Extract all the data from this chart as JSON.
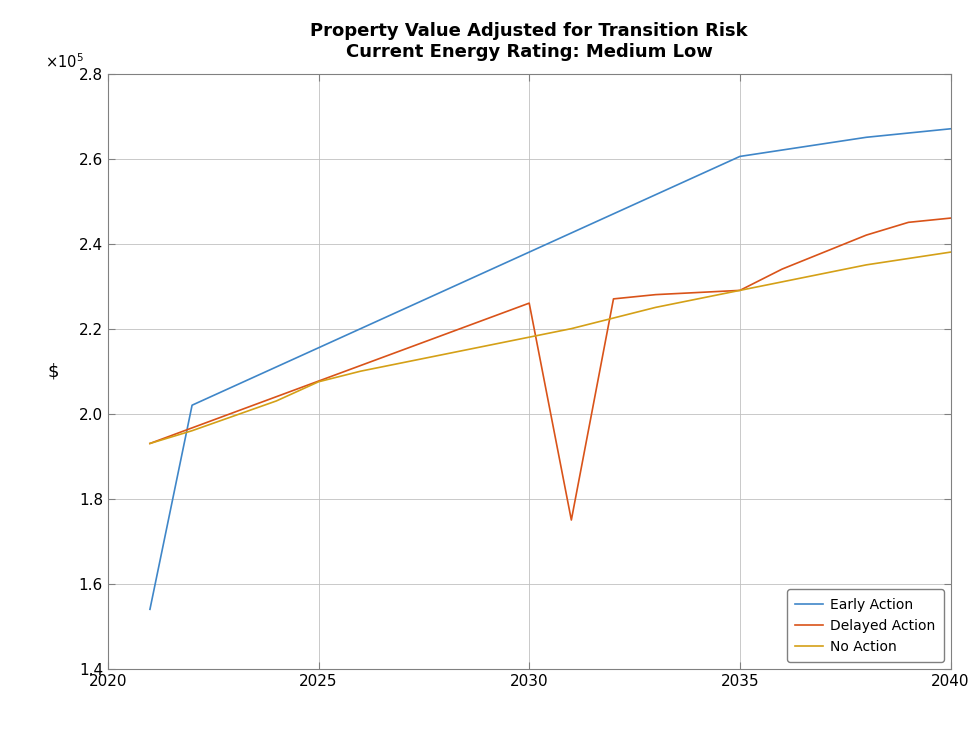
{
  "title": "Property Value Adjusted for Transition Risk\nCurrent Energy Rating: Medium Low",
  "ylabel": "$",
  "xlim": [
    2020,
    2040
  ],
  "ylim": [
    140000,
    280000
  ],
  "yticks": [
    140000,
    160000,
    180000,
    200000,
    220000,
    240000,
    260000,
    280000
  ],
  "xticks": [
    2020,
    2025,
    2030,
    2035,
    2040
  ],
  "early_action": {
    "x": [
      2021,
      2022,
      2023,
      2024,
      2025,
      2026,
      2027,
      2028,
      2029,
      2030,
      2031,
      2032,
      2033,
      2034,
      2035,
      2036,
      2037,
      2038,
      2039,
      2040
    ],
    "y": [
      154000,
      202000,
      206500,
      211000,
      215500,
      220000,
      224500,
      229000,
      233500,
      238000,
      242500,
      247000,
      251500,
      256000,
      260500,
      262000,
      263500,
      265000,
      266000,
      267000
    ],
    "color": "#3f86c8",
    "label": "Early Action"
  },
  "delayed_action": {
    "x": [
      2021,
      2030,
      2031,
      2032,
      2033,
      2034,
      2035,
      2036,
      2037,
      2038,
      2039,
      2040
    ],
    "y": [
      193000,
      226000,
      175000,
      227000,
      228000,
      228500,
      229000,
      234000,
      238000,
      242000,
      245000,
      246000
    ],
    "color": "#d95319",
    "label": "Delayed Action"
  },
  "no_action": {
    "x": [
      2021,
      2022,
      2023,
      2024,
      2025,
      2026,
      2027,
      2028,
      2029,
      2030,
      2031,
      2032,
      2033,
      2034,
      2035,
      2036,
      2037,
      2038,
      2039,
      2040
    ],
    "y": [
      193000,
      196000,
      199500,
      203000,
      207500,
      210000,
      212000,
      214000,
      216000,
      218000,
      220000,
      222500,
      225000,
      227000,
      229000,
      231000,
      233000,
      235000,
      236500,
      238000
    ],
    "color": "#d4a017",
    "label": "No Action"
  },
  "background_color": "#ffffff",
  "grid_color": "#c0c0c0",
  "title_fontsize": 13,
  "legend_fontsize": 10,
  "linewidth": 1.2
}
